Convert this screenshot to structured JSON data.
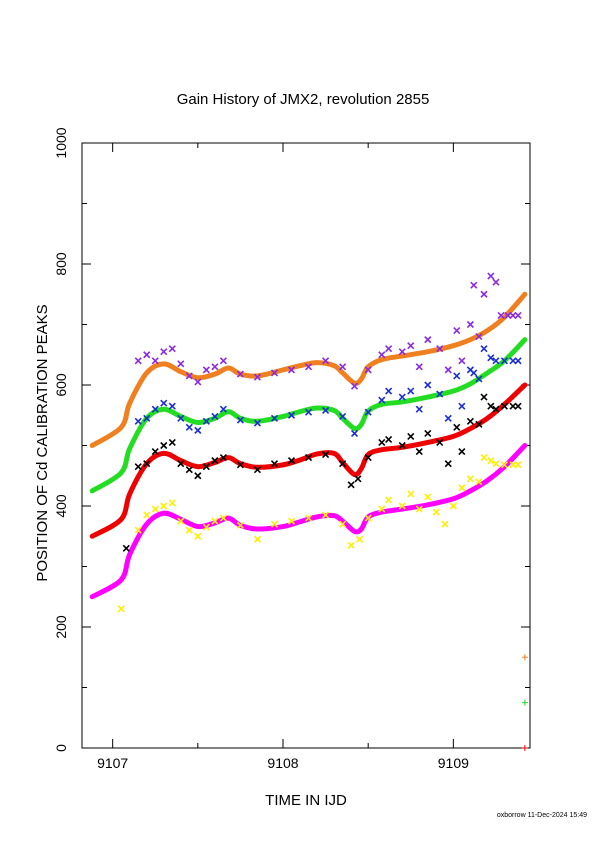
{
  "chart_data": {
    "type": "scatter",
    "title": "Gain History of JMX2, revolution 2855",
    "xlabel": "TIME IN IJD",
    "ylabel": "POSITION OF Cd CALIBRATION PEAKS",
    "xlim": [
      9106.82,
      9109.45
    ],
    "ylim": [
      0,
      1000
    ],
    "x_ticks": [
      9107,
      9108,
      9109
    ],
    "x_tick_labels": [
      "9107",
      "9108",
      "9109"
    ],
    "y_ticks": [
      0,
      200,
      400,
      600,
      800,
      1000
    ],
    "y_tick_labels": [
      "0",
      "200",
      "400",
      "600",
      "800",
      "1000"
    ],
    "grid": false,
    "footer": "oxborrow 11-Dec-2024 15:49",
    "curve_x": [
      9106.88,
      9107.05,
      9107.1,
      9107.2,
      9107.3,
      9107.4,
      9107.5,
      9107.6,
      9107.68,
      9107.75,
      9107.85,
      9108.0,
      9108.1,
      9108.2,
      9108.3,
      9108.35,
      9108.42,
      9108.46,
      9108.5,
      9108.58,
      9108.7,
      9108.85,
      9109.0,
      9109.1,
      9109.2,
      9109.3,
      9109.42
    ],
    "series": [
      {
        "name": "",
        "color": "#f07f20",
        "scatter_color": "#8a2be2",
        "curve": [
          500,
          530,
          570,
          620,
          635,
          622,
          612,
          618,
          628,
          618,
          615,
          625,
          632,
          637,
          632,
          620,
          603,
          610,
          630,
          642,
          648,
          655,
          665,
          675,
          690,
          712,
          750
        ],
        "scatter": [
          [
            9107.15,
            640
          ],
          [
            9107.2,
            650
          ],
          [
            9107.25,
            640
          ],
          [
            9107.3,
            655
          ],
          [
            9107.35,
            660
          ],
          [
            9107.4,
            635
          ],
          [
            9107.45,
            615
          ],
          [
            9107.5,
            605
          ],
          [
            9107.55,
            625
          ],
          [
            9107.6,
            630
          ],
          [
            9107.65,
            640
          ],
          [
            9107.75,
            618
          ],
          [
            9107.85,
            613
          ],
          [
            9107.95,
            620
          ],
          [
            9108.05,
            625
          ],
          [
            9108.15,
            630
          ],
          [
            9108.25,
            640
          ],
          [
            9108.35,
            630
          ],
          [
            9108.42,
            598
          ],
          [
            9108.5,
            625
          ],
          [
            9108.58,
            650
          ],
          [
            9108.62,
            660
          ],
          [
            9108.7,
            655
          ],
          [
            9108.75,
            665
          ],
          [
            9108.8,
            630
          ],
          [
            9108.85,
            675
          ],
          [
            9108.92,
            660
          ],
          [
            9108.97,
            625
          ],
          [
            9109.02,
            690
          ],
          [
            9109.05,
            640
          ],
          [
            9109.1,
            700
          ],
          [
            9109.12,
            765
          ],
          [
            9109.15,
            680
          ],
          [
            9109.18,
            750
          ],
          [
            9109.22,
            780
          ],
          [
            9109.25,
            770
          ],
          [
            9109.28,
            715
          ],
          [
            9109.32,
            715
          ],
          [
            9109.35,
            715
          ],
          [
            9109.38,
            715
          ]
        ]
      },
      {
        "name": "",
        "color": "#22dd22",
        "scatter_color": "#1a2fd0",
        "curve": [
          425,
          455,
          495,
          545,
          560,
          548,
          538,
          545,
          556,
          545,
          540,
          548,
          556,
          562,
          558,
          545,
          528,
          535,
          557,
          568,
          572,
          580,
          590,
          602,
          620,
          640,
          675
        ],
        "scatter": [
          [
            9107.15,
            540
          ],
          [
            9107.2,
            545
          ],
          [
            9107.25,
            560
          ],
          [
            9107.3,
            570
          ],
          [
            9107.35,
            565
          ],
          [
            9107.4,
            545
          ],
          [
            9107.45,
            530
          ],
          [
            9107.5,
            525
          ],
          [
            9107.55,
            540
          ],
          [
            9107.6,
            548
          ],
          [
            9107.65,
            560
          ],
          [
            9107.75,
            542
          ],
          [
            9107.85,
            537
          ],
          [
            9107.95,
            545
          ],
          [
            9108.05,
            550
          ],
          [
            9108.15,
            555
          ],
          [
            9108.25,
            558
          ],
          [
            9108.35,
            548
          ],
          [
            9108.42,
            520
          ],
          [
            9108.5,
            555
          ],
          [
            9108.58,
            575
          ],
          [
            9108.62,
            590
          ],
          [
            9108.7,
            580
          ],
          [
            9108.75,
            590
          ],
          [
            9108.8,
            560
          ],
          [
            9108.85,
            600
          ],
          [
            9108.92,
            585
          ],
          [
            9108.97,
            545
          ],
          [
            9109.02,
            615
          ],
          [
            9109.05,
            565
          ],
          [
            9109.1,
            625
          ],
          [
            9109.12,
            620
          ],
          [
            9109.15,
            610
          ],
          [
            9109.18,
            660
          ],
          [
            9109.22,
            645
          ],
          [
            9109.25,
            640
          ],
          [
            9109.3,
            640
          ],
          [
            9109.35,
            640
          ],
          [
            9109.38,
            640
          ]
        ]
      },
      {
        "name": "",
        "color": "#ee0000",
        "scatter_color": "#000000",
        "curve": [
          350,
          378,
          420,
          470,
          487,
          475,
          465,
          472,
          480,
          470,
          464,
          468,
          476,
          486,
          487,
          472,
          452,
          462,
          485,
          493,
          497,
          505,
          515,
          528,
          545,
          568,
          600
        ],
        "scatter": [
          [
            9107.08,
            330
          ],
          [
            9107.15,
            465
          ],
          [
            9107.2,
            470
          ],
          [
            9107.25,
            490
          ],
          [
            9107.3,
            500
          ],
          [
            9107.35,
            505
          ],
          [
            9107.4,
            470
          ],
          [
            9107.45,
            460
          ],
          [
            9107.5,
            450
          ],
          [
            9107.55,
            465
          ],
          [
            9107.6,
            475
          ],
          [
            9107.65,
            480
          ],
          [
            9107.75,
            468
          ],
          [
            9107.85,
            460
          ],
          [
            9107.95,
            470
          ],
          [
            9108.05,
            475
          ],
          [
            9108.15,
            480
          ],
          [
            9108.25,
            485
          ],
          [
            9108.35,
            470
          ],
          [
            9108.4,
            435
          ],
          [
            9108.44,
            445
          ],
          [
            9108.5,
            480
          ],
          [
            9108.58,
            505
          ],
          [
            9108.62,
            510
          ],
          [
            9108.7,
            500
          ],
          [
            9108.75,
            515
          ],
          [
            9108.8,
            490
          ],
          [
            9108.85,
            520
          ],
          [
            9108.92,
            505
          ],
          [
            9108.97,
            470
          ],
          [
            9109.02,
            530
          ],
          [
            9109.05,
            490
          ],
          [
            9109.1,
            540
          ],
          [
            9109.15,
            535
          ],
          [
            9109.18,
            580
          ],
          [
            9109.22,
            565
          ],
          [
            9109.25,
            560
          ],
          [
            9109.3,
            565
          ],
          [
            9109.35,
            565
          ],
          [
            9109.38,
            565
          ]
        ]
      },
      {
        "name": "",
        "color": "#ff00ff",
        "scatter_color": "#ffee00",
        "curve": [
          250,
          278,
          320,
          370,
          388,
          378,
          366,
          372,
          380,
          368,
          362,
          366,
          374,
          382,
          384,
          375,
          358,
          362,
          382,
          390,
          395,
          402,
          412,
          425,
          442,
          465,
          500
        ],
        "scatter": [
          [
            9107.05,
            230
          ],
          [
            9107.15,
            360
          ],
          [
            9107.2,
            385
          ],
          [
            9107.25,
            395
          ],
          [
            9107.3,
            400
          ],
          [
            9107.35,
            405
          ],
          [
            9107.4,
            375
          ],
          [
            9107.45,
            360
          ],
          [
            9107.5,
            350
          ],
          [
            9107.55,
            365
          ],
          [
            9107.6,
            375
          ],
          [
            9107.65,
            380
          ],
          [
            9107.75,
            368
          ],
          [
            9107.85,
            345
          ],
          [
            9107.95,
            370
          ],
          [
            9108.05,
            375
          ],
          [
            9108.15,
            380
          ],
          [
            9108.25,
            385
          ],
          [
            9108.35,
            370
          ],
          [
            9108.4,
            335
          ],
          [
            9108.45,
            345
          ],
          [
            9108.5,
            380
          ],
          [
            9108.58,
            395
          ],
          [
            9108.62,
            410
          ],
          [
            9108.7,
            400
          ],
          [
            9108.75,
            420
          ],
          [
            9108.8,
            395
          ],
          [
            9108.85,
            415
          ],
          [
            9108.9,
            390
          ],
          [
            9108.95,
            370
          ],
          [
            9109.0,
            400
          ],
          [
            9109.05,
            430
          ],
          [
            9109.1,
            445
          ],
          [
            9109.15,
            440
          ],
          [
            9109.18,
            480
          ],
          [
            9109.22,
            475
          ],
          [
            9109.25,
            470
          ],
          [
            9109.3,
            468
          ],
          [
            9109.35,
            468
          ],
          [
            9109.38,
            468
          ]
        ]
      }
    ],
    "markers": [
      {
        "x": 9109.42,
        "y": 150,
        "color": "#f07f20"
      },
      {
        "x": 9109.42,
        "y": 75,
        "color": "#22dd22"
      },
      {
        "x": 9109.42,
        "y": 0,
        "color": "#ee0000"
      }
    ]
  }
}
